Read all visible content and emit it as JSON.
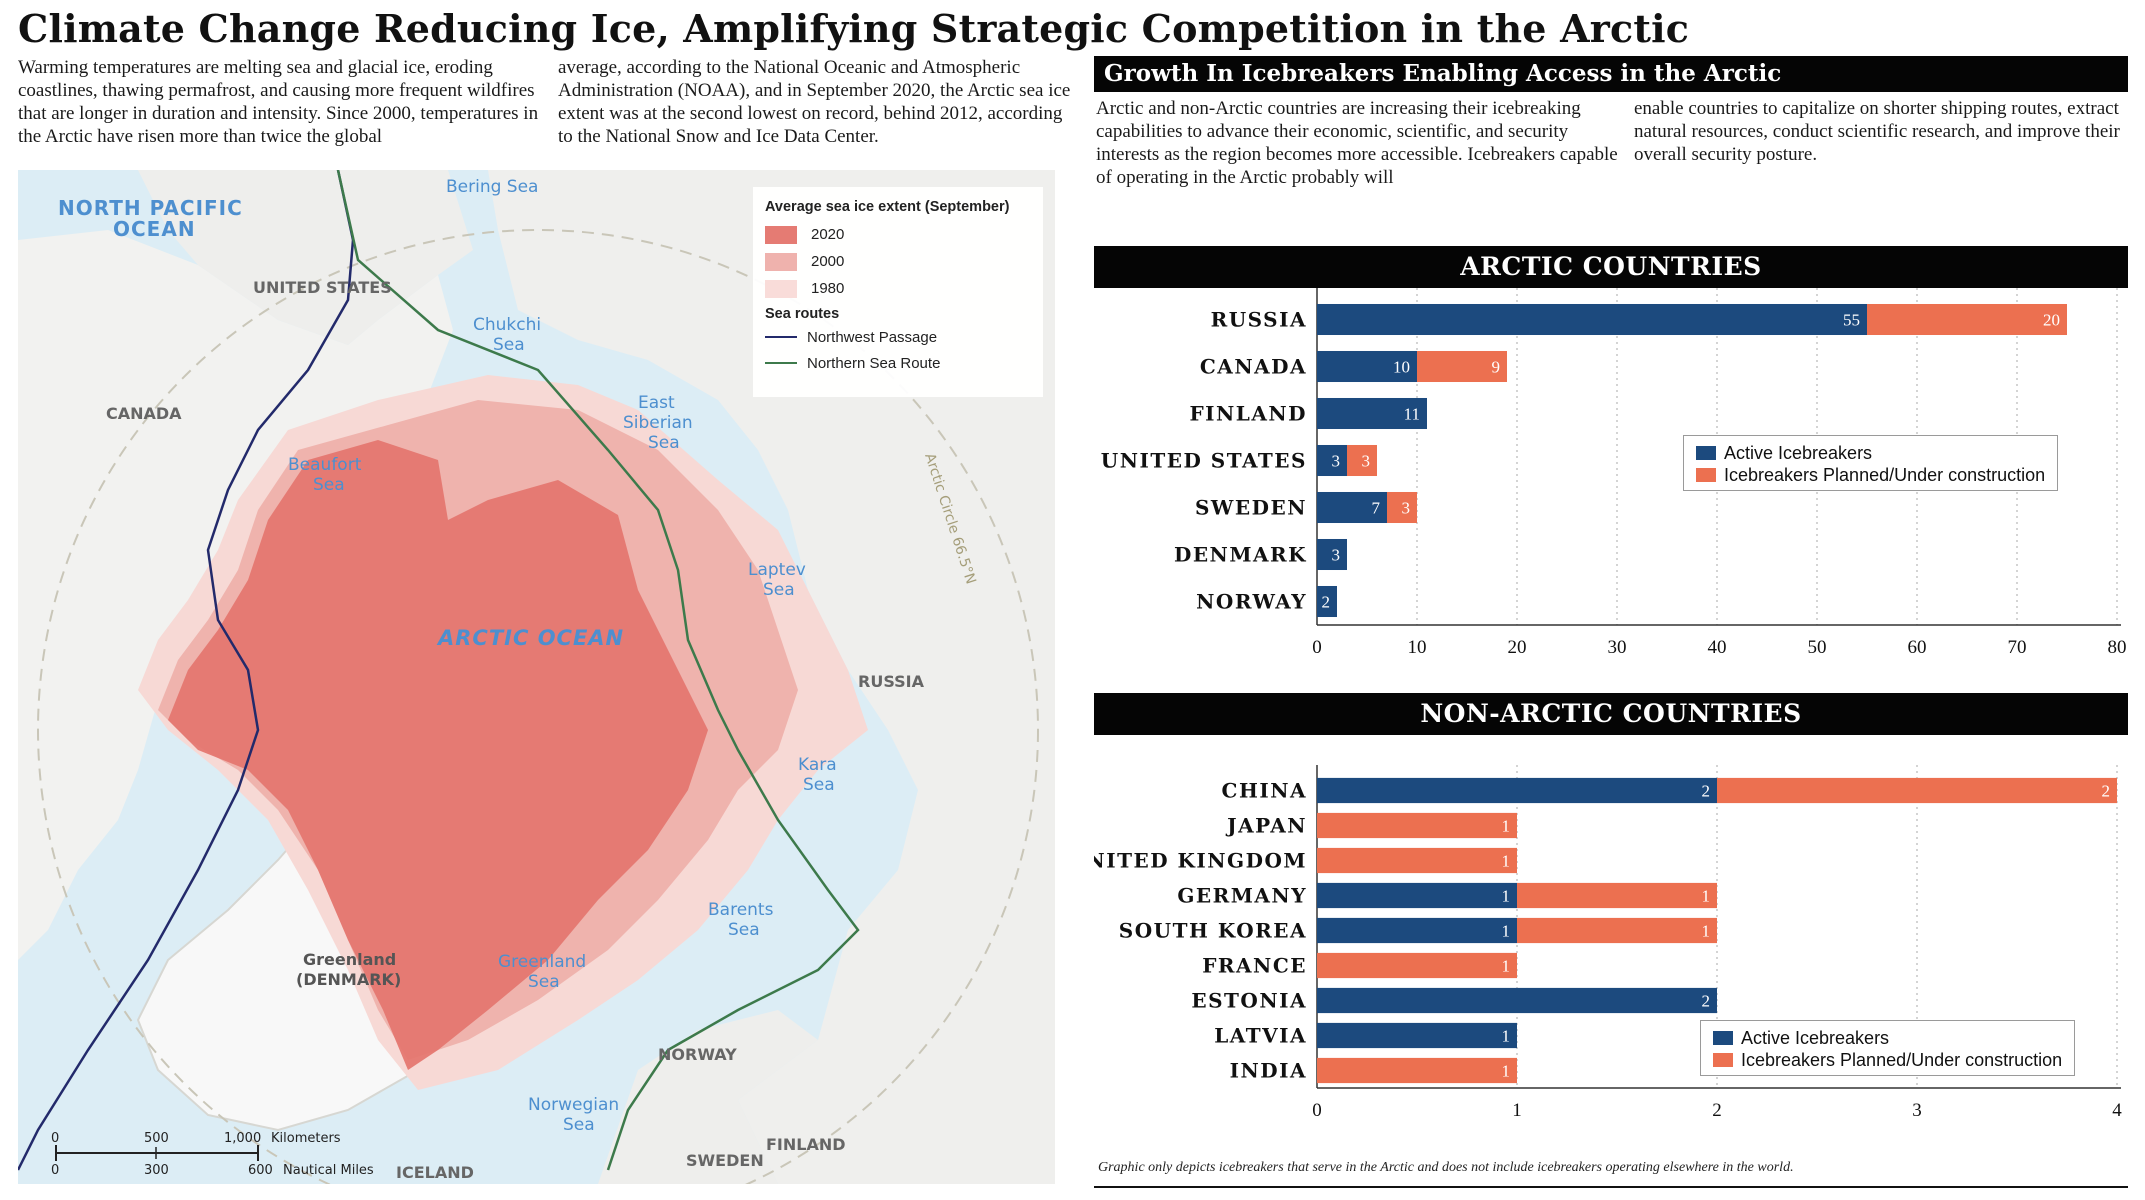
{
  "title": "Climate Change Reducing Ice, Amplifying Strategic Competition in the Arctic",
  "intro": {
    "col1": "Warming temperatures are melting sea and glacial ice, eroding coastlines, thawing permafrost, and causing more frequent wildfires that are longer in duration and intensity. Since 2000, temperatures in the Arctic have risen more than twice the global",
    "col2": "average, according to the National Oceanic and Atmospheric Administration (NOAA), and in September 2020, the Arctic sea ice extent was at the second lowest on record, behind 2012, according to the National Snow and Ice Data Center."
  },
  "map": {
    "legend_title": "Average sea ice extent (September)",
    "ice_years": [
      {
        "label": "2020",
        "color": "#e57b73"
      },
      {
        "label": "2000",
        "color": "#efb2ad"
      },
      {
        "label": "1980",
        "color": "#f9dcd9"
      }
    ],
    "routes_title": "Sea routes",
    "routes": [
      {
        "label": "Northwest Passage",
        "color": "#232a6b"
      },
      {
        "label": "Northern Sea Route",
        "color": "#3d7a4b"
      }
    ],
    "labels": {
      "north_pacific": "NORTH PACIFIC",
      "ocean": "OCEAN",
      "bering": "Bering Sea",
      "united_states": "UNITED STATES",
      "canada": "CANADA",
      "chukchi_1": "Chukchi",
      "chukchi_2": "Sea",
      "east_siberian_1": "East",
      "east_siberian_2": "Siberian",
      "east_siberian_3": "Sea",
      "beaufort_1": "Beaufort",
      "beaufort_2": "Sea",
      "arctic_ocean": "ARCTIC OCEAN",
      "laptev_1": "Laptev",
      "laptev_2": "Sea",
      "russia": "RUSSIA",
      "kara_1": "Kara",
      "kara_2": "Sea",
      "barents_1": "Barents",
      "barents_2": "Sea",
      "greenland_sea_1": "Greenland",
      "greenland_sea_2": "Sea",
      "greenland_1": "Greenland",
      "greenland_2": "(DENMARK)",
      "norway": "NORWAY",
      "norwegian_1": "Norwegian",
      "norwegian_2": "Sea",
      "finland": "FINLAND",
      "sweden": "SWEDEN",
      "iceland": "ICELAND",
      "arctic_circle": "Arctic Circle 66.5°N"
    },
    "scale": {
      "km_ticks": [
        "0",
        "500",
        "1,000"
      ],
      "km_label": "Kilometers",
      "nm_ticks": [
        "0",
        "300",
        "600"
      ],
      "nm_label": "Nautical Miles"
    }
  },
  "right": {
    "heading": "Growth In Icebreakers Enabling Access in the Arctic",
    "col1": "Arctic and non-Arctic countries are increasing their icebreaking capabilities to advance their economic, scientific, and security interests as the region becomes more accessible. Icebreakers capable of operating in the Arctic probably will",
    "col2": "enable countries to capitalize on shorter shipping routes, extract natural resources, conduct scientific research, and improve their overall security posture."
  },
  "legend": {
    "active": "Active Icebreakers",
    "planned": "Icebreakers Planned/Under construction"
  },
  "colors": {
    "active": "#1c4a7e",
    "planned": "#ec7050"
  },
  "footnote": "Graphic only depicts icebreakers that serve in the Arctic and does not include icebreakers operating elsewhere in the world.",
  "chart_data": [
    {
      "type": "bar",
      "orientation": "horizontal",
      "stacked": true,
      "title": "ARCTIC COUNTRIES",
      "categories": [
        "RUSSIA",
        "CANADA",
        "FINLAND",
        "UNITED STATES",
        "SWEDEN",
        "DENMARK",
        "NORWAY"
      ],
      "series": [
        {
          "name": "Active Icebreakers",
          "values": [
            55,
            10,
            11,
            3,
            7,
            3,
            2
          ]
        },
        {
          "name": "Icebreakers Planned/Under construction",
          "values": [
            20,
            9,
            0,
            3,
            3,
            0,
            0
          ]
        }
      ],
      "xlim": [
        0,
        80
      ],
      "xticks": [
        0,
        10,
        20,
        30,
        40,
        50,
        60,
        70,
        80
      ],
      "grid": "vertical dotted",
      "legend_position": "right"
    },
    {
      "type": "bar",
      "orientation": "horizontal",
      "stacked": true,
      "title": "NON-ARCTIC COUNTRIES",
      "categories": [
        "CHINA",
        "JAPAN",
        "UNITED KINGDOM",
        "GERMANY",
        "SOUTH KOREA",
        "FRANCE",
        "ESTONIA",
        "LATVIA",
        "INDIA"
      ],
      "series": [
        {
          "name": "Active Icebreakers",
          "values": [
            2,
            0,
            0,
            1,
            1,
            0,
            2,
            1,
            0
          ]
        },
        {
          "name": "Icebreakers Planned/Under construction",
          "values": [
            2,
            1,
            1,
            1,
            1,
            1,
            0,
            0,
            1
          ]
        }
      ],
      "xlim": [
        0,
        4
      ],
      "xticks": [
        0,
        1,
        2,
        3,
        4
      ],
      "grid": "vertical dotted",
      "legend_position": "bottom-right"
    }
  ]
}
